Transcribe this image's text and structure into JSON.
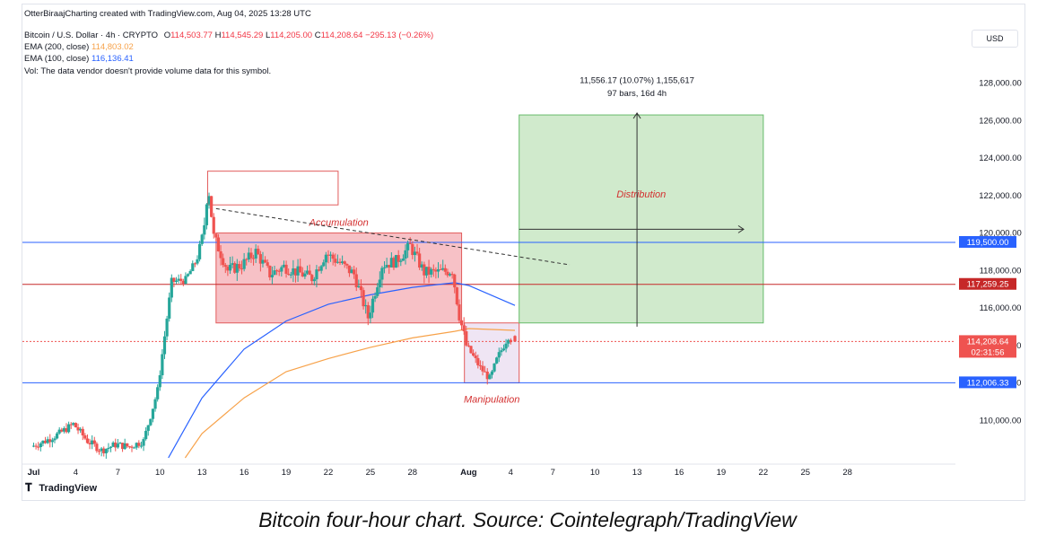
{
  "header": {
    "credit": "OtterBiraajCharting created with TradingView.com, Aug 04, 2025 13:28 UTC",
    "symbol": "Bitcoin / U.S. Dollar · 4h · CRYPTO",
    "ohlc_o_label": "O",
    "ohlc_o": "114,503.77",
    "ohlc_h_label": "H",
    "ohlc_h": "114,545.29",
    "ohlc_l_label": "L",
    "ohlc_l": "114,205.00",
    "ohlc_c_label": "C",
    "ohlc_c": "114,208.64",
    "ohlc_change": "−295.13 (−0.26%)",
    "ema200_label": "EMA (200, close)",
    "ema200_value": "114,803.02",
    "ema100_label": "EMA (100, close)",
    "ema100_value": "116,136.41",
    "vol_note": "Vol: The data vendor doesn't provide volume data for this symbol.",
    "currency_button": "USD"
  },
  "footer": {
    "logo_text": "TradingView",
    "caption": "Bitcoin four-hour chart. Source: Cointelegraph/TradingView"
  },
  "colors": {
    "up": "#26a69a",
    "down": "#ef5350",
    "ema200": "#f7a24a",
    "ema100": "#2962ff",
    "zone_red": "#f2a0a7",
    "zone_green": "#b7dfb1",
    "level_blue": "#2962ff",
    "level_red": "#c62828"
  },
  "chart_data": {
    "type": "candlestick",
    "title": "Bitcoin / U.S. Dollar · 4h · CRYPTO",
    "ylim": [
      108000,
      129800
    ],
    "y_ticks": [
      110000,
      112000,
      114000,
      116000,
      118000,
      120000,
      122000,
      124000,
      126000,
      128000
    ],
    "y_tick_labels": [
      "110,000.00",
      "112,000.00",
      "114,000.00",
      "116,000.00",
      "118,000.00",
      "120,000.00",
      "122,000.00",
      "124,000.00",
      "126,000.00",
      "128,000.00"
    ],
    "x_range_days": [
      -0.8,
      37.3
    ],
    "x_ticks": [
      {
        "day": 0,
        "label": "Jul"
      },
      {
        "day": 3,
        "label": "4"
      },
      {
        "day": 6,
        "label": "7"
      },
      {
        "day": 9,
        "label": "10"
      },
      {
        "day": 12,
        "label": "13"
      },
      {
        "day": 15,
        "label": "16"
      },
      {
        "day": 18,
        "label": "19"
      },
      {
        "day": 21,
        "label": "22"
      },
      {
        "day": 24,
        "label": "25"
      },
      {
        "day": 27,
        "label": "28"
      },
      {
        "day": 31,
        "label": "Aug"
      },
      {
        "day": 34,
        "label": "4"
      },
      {
        "day": 37,
        "label": "7"
      },
      {
        "day": 40,
        "label": "10"
      },
      {
        "day": 43,
        "label": "13"
      },
      {
        "day": 46,
        "label": "16"
      },
      {
        "day": 49,
        "label": "19"
      },
      {
        "day": 52,
        "label": "22"
      },
      {
        "day": 55,
        "label": "25"
      },
      {
        "day": 58,
        "label": "28"
      }
    ],
    "close_path": [
      [
        0,
        108600
      ],
      [
        1,
        108900
      ],
      [
        2,
        109300
      ],
      [
        3,
        109800
      ],
      [
        4,
        108900
      ],
      [
        5,
        108400
      ],
      [
        6,
        108700
      ],
      [
        7,
        108600
      ],
      [
        8,
        108900
      ],
      [
        9,
        111600
      ],
      [
        10,
        117400
      ],
      [
        11,
        117500
      ],
      [
        11.8,
        118600
      ],
      [
        12.3,
        120200
      ],
      [
        12.6,
        122600
      ],
      [
        13,
        119800
      ],
      [
        14,
        118000
      ],
      [
        15,
        118300
      ],
      [
        16,
        119000
      ],
      [
        17,
        117800
      ],
      [
        18,
        118200
      ],
      [
        19,
        117900
      ],
      [
        20,
        117600
      ],
      [
        21,
        118900
      ],
      [
        22,
        118400
      ],
      [
        23,
        117800
      ],
      [
        24,
        115500
      ],
      [
        25,
        118300
      ],
      [
        26,
        118500
      ],
      [
        27,
        119300
      ],
      [
        28,
        117900
      ],
      [
        29,
        117900
      ],
      [
        30,
        118000
      ],
      [
        30.5,
        115600
      ],
      [
        31,
        114000
      ],
      [
        32,
        112800
      ],
      [
        32.7,
        112200
      ],
      [
        33.2,
        113300
      ],
      [
        34,
        114500
      ],
      [
        34.3,
        114200
      ]
    ],
    "last_candle": {
      "open": 114503.77,
      "high": 114545.29,
      "low": 114205.0,
      "close": 114208.64
    },
    "ema200_path": [
      [
        10.8,
        108000
      ],
      [
        12,
        109300
      ],
      [
        15,
        111200
      ],
      [
        18,
        112600
      ],
      [
        21,
        113300
      ],
      [
        24,
        113900
      ],
      [
        27,
        114400
      ],
      [
        30,
        114750
      ],
      [
        31,
        114900
      ],
      [
        34.3,
        114803
      ]
    ],
    "ema100_path": [
      [
        9.6,
        108000
      ],
      [
        12,
        111200
      ],
      [
        15,
        113800
      ],
      [
        18,
        115300
      ],
      [
        21,
        116200
      ],
      [
        24,
        116700
      ],
      [
        27,
        117100
      ],
      [
        30,
        117350
      ],
      [
        31,
        117200
      ],
      [
        34.3,
        116136
      ]
    ],
    "horizontal_levels": [
      {
        "price": 119500.0,
        "label": "119,500.00",
        "color": "#2962ff"
      },
      {
        "price": 117259.25,
        "label": "117,259.25",
        "color": "#c62828"
      },
      {
        "price": 112006.33,
        "label": "112,006.33",
        "color": "#2962ff"
      }
    ],
    "current_price": {
      "price": 114208.64,
      "label": "114,208.64",
      "countdown": "02:31:56"
    },
    "zones": [
      {
        "label": "",
        "x": [
          12.4,
          21.7
        ],
        "y": [
          121500,
          123300
        ],
        "style": "outline"
      },
      {
        "label": "Accumulation",
        "x": [
          13.0,
          30.5
        ],
        "y": [
          115200,
          120000
        ],
        "style": "red"
      },
      {
        "label": "Manipulation",
        "x": [
          30.7,
          34.6
        ],
        "y": [
          112000,
          115200
        ],
        "style": "purple"
      },
      {
        "label": "Distribution",
        "x": [
          34.6,
          52.0
        ],
        "y": [
          115200,
          126300
        ],
        "style": "green"
      }
    ],
    "trendline": {
      "from": [
        13.0,
        121300
      ],
      "to": [
        38.2,
        118300
      ]
    },
    "measure": {
      "text_line1": "11,556.17 (10.07%) 1,155,617",
      "text_line1_pos": [
        43.0,
        128000
      ],
      "text_line2": "97 bars, 16d 4h",
      "text_line2_pos": [
        43.0,
        127300
      ],
      "vertical": {
        "x": 43.0,
        "y": [
          115000,
          126400
        ]
      },
      "horizontal": {
        "y": 120200,
        "x": [
          34.6,
          50.6
        ]
      }
    }
  }
}
